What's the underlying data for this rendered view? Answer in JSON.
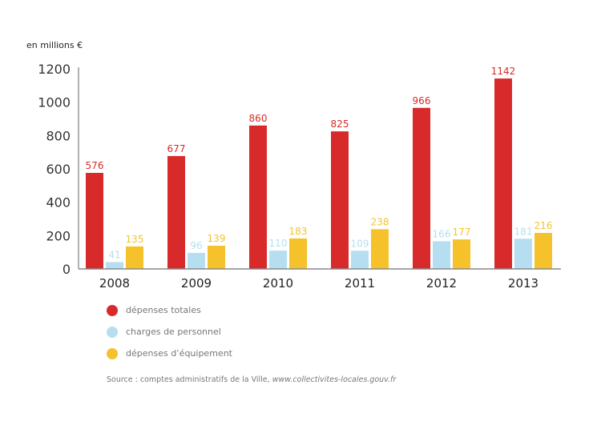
{
  "chart_data": {
    "type": "bar",
    "ylabel": "en millions €",
    "ylim": [
      0,
      1200
    ],
    "yticks": [
      0,
      200,
      400,
      600,
      800,
      1000,
      1200
    ],
    "categories": [
      "2008",
      "2009",
      "2010",
      "2011",
      "2012",
      "2013"
    ],
    "series": [
      {
        "name": "dépenses totales",
        "color": "#d82a2a",
        "values": [
          576,
          677,
          860,
          825,
          966,
          1142
        ]
      },
      {
        "name": "charges de personnel",
        "color": "#b5dff0",
        "values": [
          41,
          96,
          110,
          109,
          166,
          181
        ]
      },
      {
        "name": "dépenses d’équipement",
        "color": "#f5c22c",
        "values": [
          135,
          139,
          183,
          238,
          177,
          216
        ]
      }
    ],
    "grid": false,
    "legend_position": "bottom-left",
    "source_prefix": "Source : comptes administratifs de la Ville, ",
    "source_link": "www.collectivites-locales.gouv.fr"
  }
}
